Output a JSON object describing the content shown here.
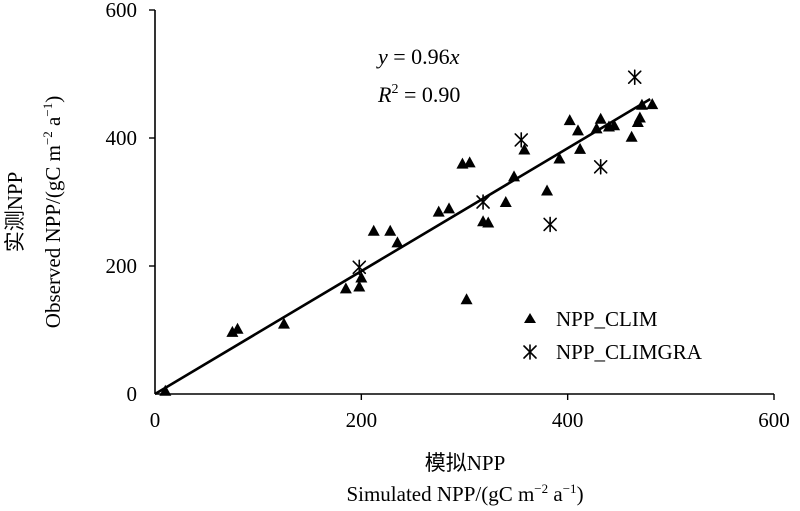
{
  "chart_data": {
    "type": "scatter",
    "xlabel_cn": "模拟NPP",
    "xlabel_en": "Simulated NPP/(gC m",
    "ylabel_cn": "实测NPP",
    "ylabel_en": "Observed NPP/(gC m",
    "unit_sup_m": "−2",
    "unit_a": " a",
    "unit_sup_a": "−1",
    "unit_close": ")",
    "xlim": [
      0,
      600
    ],
    "ylim": [
      0,
      600
    ],
    "xticks": [
      "0",
      "200",
      "400",
      "600"
    ],
    "yticks": [
      "0",
      "200",
      "400",
      "600"
    ],
    "equation": {
      "y": "y",
      "eq_mid": " = 0.96",
      "x": "x",
      "r": "R",
      "r_sup": "2",
      "r_val": " = 0.90"
    },
    "fit": {
      "slope": 0.96,
      "x_range": [
        0,
        480
      ]
    },
    "legend": {
      "position": "bottom-right"
    },
    "series": [
      {
        "name": "NPP_CLIM",
        "marker": "triangle",
        "points": [
          [
            10,
            5
          ],
          [
            75,
            97
          ],
          [
            80,
            102
          ],
          [
            125,
            110
          ],
          [
            185,
            165
          ],
          [
            198,
            168
          ],
          [
            200,
            182
          ],
          [
            212,
            255
          ],
          [
            228,
            255
          ],
          [
            235,
            237
          ],
          [
            275,
            285
          ],
          [
            285,
            290
          ],
          [
            298,
            360
          ],
          [
            305,
            362
          ],
          [
            302,
            148
          ],
          [
            318,
            270
          ],
          [
            323,
            268
          ],
          [
            340,
            300
          ],
          [
            348,
            340
          ],
          [
            358,
            382
          ],
          [
            380,
            318
          ],
          [
            392,
            368
          ],
          [
            402,
            428
          ],
          [
            410,
            412
          ],
          [
            412,
            383
          ],
          [
            428,
            415
          ],
          [
            432,
            430
          ],
          [
            440,
            418
          ],
          [
            445,
            420
          ],
          [
            462,
            402
          ],
          [
            468,
            425
          ],
          [
            470,
            432
          ],
          [
            472,
            452
          ],
          [
            482,
            453
          ]
        ]
      },
      {
        "name": "NPP_CLIMGRA",
        "marker": "star",
        "points": [
          [
            198,
            198
          ],
          [
            318,
            300
          ],
          [
            355,
            397
          ],
          [
            383,
            265
          ],
          [
            432,
            355
          ],
          [
            465,
            495
          ]
        ]
      }
    ]
  }
}
